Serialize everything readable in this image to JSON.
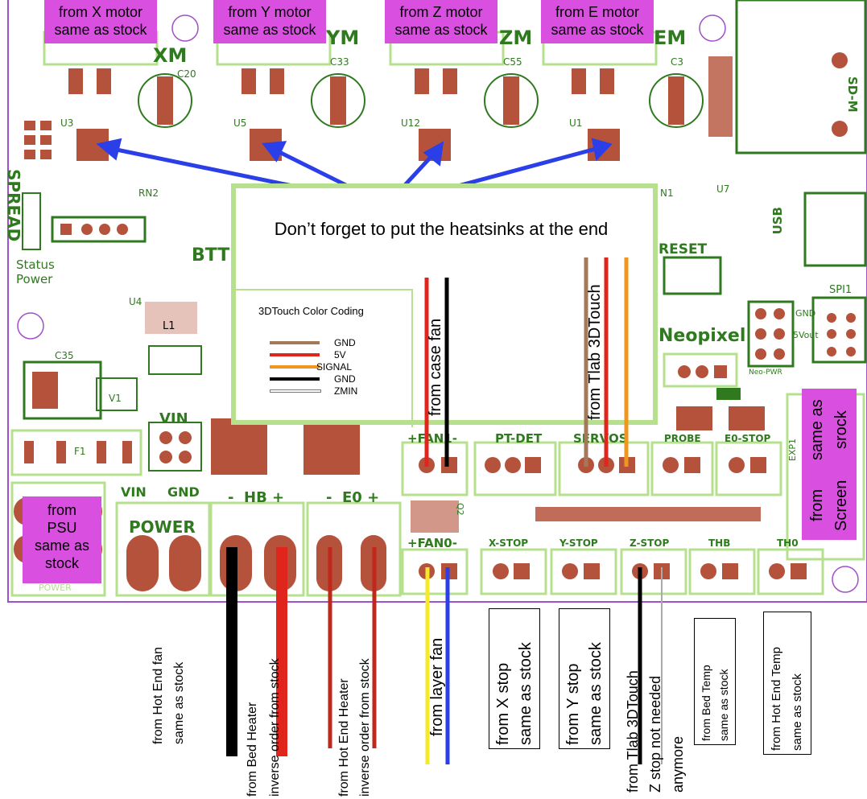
{
  "motor_labels": [
    {
      "line1": "from X motor",
      "line2": "same as stock"
    },
    {
      "line1": "from Y motor",
      "line2": "same as stock"
    },
    {
      "line1": "from Z motor",
      "line2": "same as stock"
    },
    {
      "line1": "from E motor",
      "line2": "same as stock"
    }
  ],
  "psu_label": {
    "line1": "from",
    "line2": "PSU",
    "line3": "same as",
    "line4": "stock"
  },
  "screen_label": {
    "line1": "from Screen",
    "line2": "same as srock"
  },
  "note": {
    "main_text": "Don’t forget to put the heatsinks at the end",
    "legend_title": "3DTouch Color Coding",
    "legend": [
      {
        "label": "GND",
        "color": "#a4795a"
      },
      {
        "label": "5V",
        "color": "#e0261c"
      },
      {
        "label": "SIGNAL",
        "color": "#f0961e"
      },
      {
        "label": "GND",
        "color": "#000000"
      },
      {
        "label": "ZMIN",
        "color": "#ffffff"
      }
    ]
  },
  "wire_labels": {
    "case_fan": "from case fan",
    "tlab_3dtouch_top": "from Tlab 3DTouch",
    "hot_end_fan": {
      "line1": "from Hot End fan",
      "line2": "same as stock"
    },
    "bed_heater": {
      "line1": "from Bed Heater",
      "line2": "inverse order from stock"
    },
    "hot_end_heater": {
      "line1": "from Hot End Heater",
      "line2": "inverse order from stock"
    },
    "layer_fan": "from layer fan",
    "x_stop": {
      "line1": "from X stop",
      "line2": "same as stock"
    },
    "y_stop": {
      "line1": "from Y stop",
      "line2": "same as stock"
    },
    "z_stop": {
      "line1": "from Tlab 3DTouch",
      "line2": "Z stop not needed",
      "line3": "anymore"
    },
    "bed_temp": {
      "line1": "from Bed Temp",
      "line2": "same as stock"
    },
    "hot_end_temp": {
      "line1": "from Hot End Temp",
      "line2": "same as stock"
    }
  },
  "board_silkscreen": {
    "xm": "XM",
    "ym": "YM",
    "zm": "ZM",
    "em": "EM",
    "spread": "SPREAD",
    "status": "Status",
    "power_led": "Power",
    "btt": "BTT",
    "reset": "RESET",
    "neopixel": "Neopixel",
    "usb": "USB",
    "sd_m": "SD-M",
    "spi1": "SPI1",
    "gnd_pin": "GND",
    "vout_pin": "5Vout",
    "neo_pwr": "Neo-PWR",
    "exp1": "EXP1",
    "rn2": "RN2",
    "n1": "N1",
    "c20": "C20",
    "c33": "C33",
    "c55": "C55",
    "c3": "C3",
    "c35": "C35",
    "u3": "U3",
    "u5": "U5",
    "u12": "U12",
    "u1": "U1",
    "u4": "U4",
    "u7": "U7",
    "l1": "L1",
    "v1": "V1",
    "f1": "F1",
    "q2": "Q2",
    "vin": "VIN",
    "vin_gnd_vin": "VIN",
    "vin_gnd_gnd": "GND",
    "power": "POWER",
    "power_small": "POWER",
    "hb": "-  HB +",
    "e0": "-  E0 +",
    "fan1": "+FAN1-",
    "fan0": "+FAN0-",
    "pt_det": "PT-DET",
    "servos": "SERVOS",
    "probe": "PROBE",
    "e0_stop": "E0-STOP",
    "x_stop": "X-STOP",
    "y_stop": "Y-STOP",
    "z_stop": "Z-STOP",
    "thb": "THB",
    "th0": "TH0"
  },
  "colors": {
    "board": "#ffffff",
    "board_outline": "#a050c8",
    "silk": "#2f7a1f",
    "silk_light": "#b6e08e",
    "pad": "#b5523b",
    "magenta": "#d94fe0",
    "arrow": "#2a3fe8"
  }
}
